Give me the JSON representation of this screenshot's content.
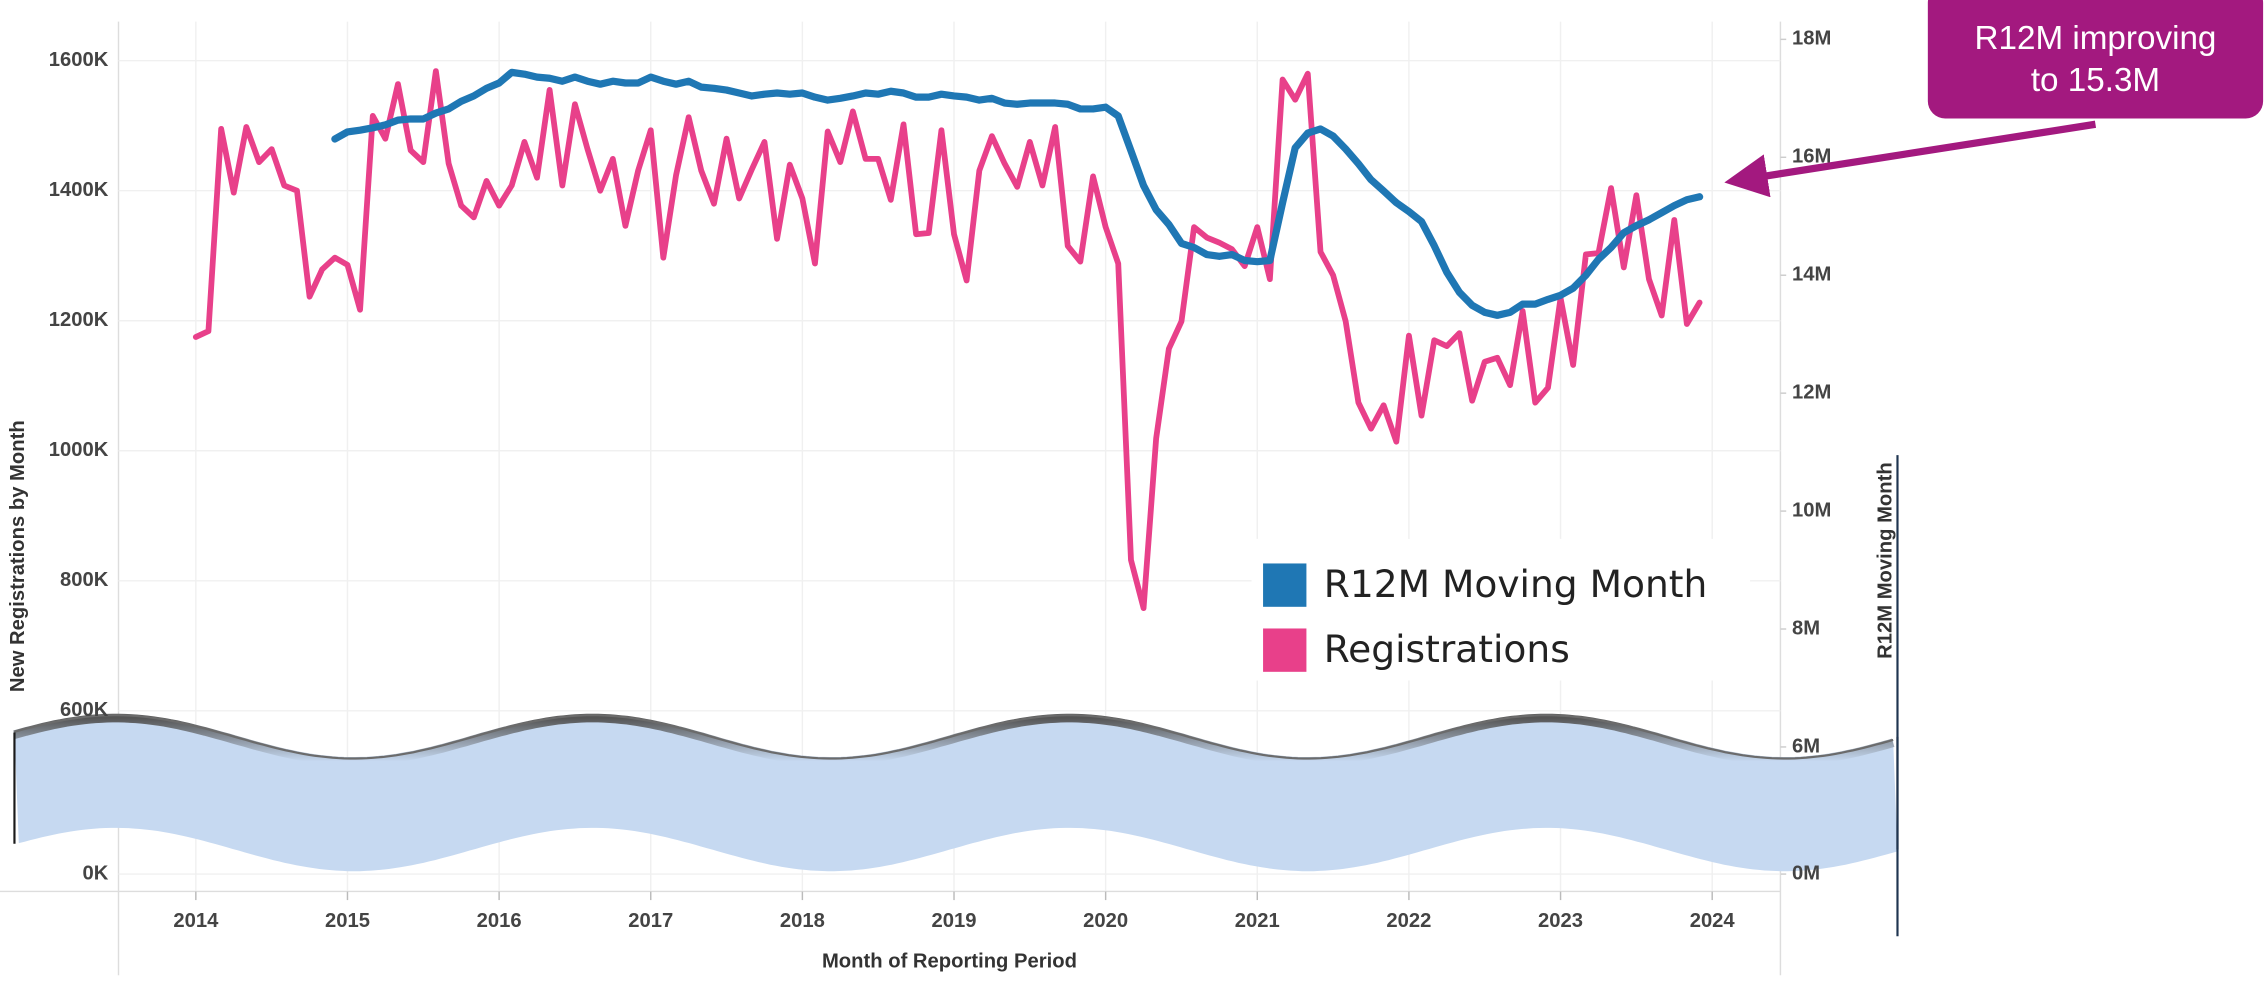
{
  "chart_data": {
    "type": "line",
    "x_label": "Month of Reporting Period",
    "y_label": "New Registrations by Month",
    "y2_label": "R12M Moving Month",
    "annotation": [
      "R12M improving",
      "to 15.3M"
    ],
    "xlim": [
      2013.49,
      2024.45
    ],
    "xticks": [
      2014,
      2015,
      2016,
      2017,
      2018,
      2019,
      2020,
      2021,
      2022,
      2023,
      2024
    ],
    "ylim": [
      0,
      1660000
    ],
    "yticks": [
      {
        "value": 0,
        "label": "0K"
      },
      {
        "value": 600000,
        "label": "600K"
      },
      {
        "value": 800000,
        "label": "800K"
      },
      {
        "value": 1000000,
        "label": "1000K"
      },
      {
        "value": 1200000,
        "label": "1200K"
      },
      {
        "value": 1400000,
        "label": "1400K"
      },
      {
        "value": 1600000,
        "label": "1600K"
      }
    ],
    "y2lim": [
      0,
      18300000
    ],
    "y2ticks": [
      {
        "value": 0,
        "label": "0M"
      },
      {
        "value": 6000000,
        "label": "6M"
      },
      {
        "value": 8000000,
        "label": "8M"
      },
      {
        "value": 10000000,
        "label": "10M"
      },
      {
        "value": 12000000,
        "label": "12M"
      },
      {
        "value": 14000000,
        "label": "14M"
      },
      {
        "value": 16000000,
        "label": "16M"
      },
      {
        "value": 18000000,
        "label": "18M"
      }
    ],
    "grid": true,
    "legend": "center-right",
    "x": [
      2014,
      2014.083,
      2014.167,
      2014.25,
      2014.333,
      2014.417,
      2014.5,
      2014.583,
      2014.667,
      2014.75,
      2014.833,
      2014.917,
      2015,
      2015.083,
      2015.167,
      2015.25,
      2015.333,
      2015.417,
      2015.5,
      2015.583,
      2015.667,
      2015.75,
      2015.833,
      2015.917,
      2016,
      2016.083,
      2016.167,
      2016.25,
      2016.333,
      2016.417,
      2016.5,
      2016.583,
      2016.667,
      2016.75,
      2016.833,
      2016.917,
      2017,
      2017.083,
      2017.167,
      2017.25,
      2017.333,
      2017.417,
      2017.5,
      2017.583,
      2017.667,
      2017.75,
      2017.833,
      2017.917,
      2018,
      2018.083,
      2018.167,
      2018.25,
      2018.333,
      2018.417,
      2018.5,
      2018.583,
      2018.667,
      2018.75,
      2018.833,
      2018.917,
      2019,
      2019.083,
      2019.167,
      2019.25,
      2019.333,
      2019.417,
      2019.5,
      2019.583,
      2019.667,
      2019.75,
      2019.833,
      2019.917,
      2020,
      2020.083,
      2020.167,
      2020.25,
      2020.333,
      2020.417,
      2020.5,
      2020.583,
      2020.667,
      2020.75,
      2020.833,
      2020.917,
      2021,
      2021.083,
      2021.167,
      2021.25,
      2021.333,
      2021.417,
      2021.5,
      2021.583,
      2021.667,
      2021.75,
      2021.833,
      2021.917,
      2022,
      2022.083,
      2022.167,
      2022.25,
      2022.333,
      2022.417,
      2022.5,
      2022.583,
      2022.667,
      2022.75,
      2022.833,
      2022.917,
      2023,
      2023.083,
      2023.167,
      2023.25,
      2023.333,
      2023.417,
      2023.5,
      2023.583,
      2023.667,
      2023.75,
      2023.833,
      2023.917
    ],
    "series": [
      {
        "name": "R12M Moving Month",
        "color": "#1f77b4",
        "axis": "y2",
        "values": [
          null,
          null,
          null,
          null,
          null,
          null,
          null,
          null,
          null,
          null,
          null,
          16310000,
          16430000,
          16460000,
          16500000,
          16550000,
          16630000,
          16650000,
          16650000,
          16750000,
          16820000,
          16950000,
          17040000,
          17170000,
          17260000,
          17440000,
          17410000,
          17360000,
          17340000,
          17290000,
          17360000,
          17290000,
          17240000,
          17290000,
          17260000,
          17260000,
          17360000,
          17290000,
          17240000,
          17290000,
          17190000,
          17170000,
          17140000,
          17090000,
          17040000,
          17070000,
          17090000,
          17070000,
          17090000,
          17020000,
          16970000,
          17000000,
          17040000,
          17090000,
          17070000,
          17120000,
          17090000,
          17020000,
          17020000,
          17070000,
          17040000,
          17020000,
          16970000,
          17000000,
          16920000,
          16900000,
          16920000,
          16920000,
          16920000,
          16900000,
          16820000,
          16820000,
          16850000,
          16700000,
          16110000,
          15520000,
          15110000,
          14860000,
          14540000,
          14470000,
          14350000,
          14320000,
          14350000,
          14250000,
          14230000,
          14250000,
          15230000,
          16160000,
          16410000,
          16480000,
          16360000,
          16140000,
          15890000,
          15620000,
          15430000,
          15230000,
          15080000,
          14910000,
          14500000,
          14050000,
          13710000,
          13490000,
          13370000,
          13320000,
          13370000,
          13510000,
          13510000,
          13590000,
          13660000,
          13780000,
          14000000,
          14270000,
          14470000,
          14720000,
          14840000,
          14940000,
          15060000,
          15180000,
          15280000,
          15330000
        ]
      },
      {
        "name": "Registrations",
        "color": "#e8408a",
        "values": [
          1175000,
          1184000,
          1495000,
          1397000,
          1498000,
          1444000,
          1464000,
          1408000,
          1400000,
          1237000,
          1279000,
          1297000,
          1286000,
          1217000,
          1515000,
          1480000,
          1564000,
          1462000,
          1444000,
          1584000,
          1442000,
          1377000,
          1359000,
          1415000,
          1377000,
          1408000,
          1475000,
          1420000,
          1555000,
          1408000,
          1533000,
          1464000,
          1400000,
          1449000,
          1346000,
          1431000,
          1493000,
          1297000,
          1424000,
          1513000,
          1431000,
          1380000,
          1480000,
          1388000,
          1433000,
          1475000,
          1326000,
          1440000,
          1388000,
          1288000,
          1491000,
          1444000,
          1522000,
          1449000,
          1449000,
          1386000,
          1502000,
          1333000,
          1335000,
          1493000,
          1333000,
          1262000,
          1431000,
          1484000,
          1442000,
          1406000,
          1475000,
          1408000,
          1498000,
          1315000,
          1291000,
          1422000,
          1344000,
          1288000,
          832000,
          758000,
          1019000,
          1157000,
          1199000,
          1344000,
          1328000,
          1320000,
          1310000,
          1284000,
          1344000,
          1264000,
          1571000,
          1540000,
          1580000,
          1306000,
          1270000,
          1199000,
          1074000,
          1034000,
          1070000,
          1014000,
          1177000,
          1054000,
          1170000,
          1161000,
          1181000,
          1077000,
          1137000,
          1143000,
          1101000,
          1215000,
          1074000,
          1097000,
          1235000,
          1132000,
          1302000,
          1304000,
          1404000,
          1282000,
          1393000,
          1264000,
          1208000,
          1355000,
          1195000,
          1228000
        ]
      }
    ]
  }
}
